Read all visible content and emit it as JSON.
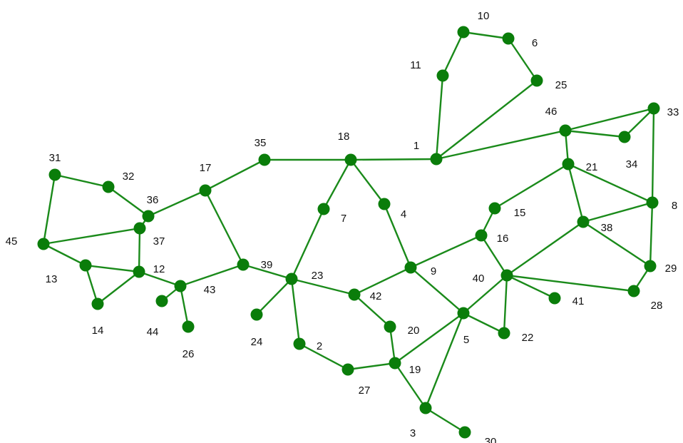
{
  "colors": {
    "node": "#0a7d0a",
    "edge": "#1a8a1a",
    "label": "#111111",
    "background": "#ffffff"
  },
  "nodes": [
    {
      "id": "1"
    },
    {
      "id": "2"
    },
    {
      "id": "3"
    },
    {
      "id": "4"
    },
    {
      "id": "5"
    },
    {
      "id": "6"
    },
    {
      "id": "7"
    },
    {
      "id": "8"
    },
    {
      "id": "9"
    },
    {
      "id": "10"
    },
    {
      "id": "11"
    },
    {
      "id": "12"
    },
    {
      "id": "13"
    },
    {
      "id": "14"
    },
    {
      "id": "15"
    },
    {
      "id": "16"
    },
    {
      "id": "17"
    },
    {
      "id": "18"
    },
    {
      "id": "19"
    },
    {
      "id": "20"
    },
    {
      "id": "21"
    },
    {
      "id": "22"
    },
    {
      "id": "23"
    },
    {
      "id": "24"
    },
    {
      "id": "25"
    },
    {
      "id": "26"
    },
    {
      "id": "27"
    },
    {
      "id": "28"
    },
    {
      "id": "29"
    },
    {
      "id": "30"
    },
    {
      "id": "31"
    },
    {
      "id": "32"
    },
    {
      "id": "33"
    },
    {
      "id": "34"
    },
    {
      "id": "35"
    },
    {
      "id": "36"
    },
    {
      "id": "37"
    },
    {
      "id": "38"
    },
    {
      "id": "39"
    },
    {
      "id": "40"
    },
    {
      "id": "41"
    },
    {
      "id": "42"
    },
    {
      "id": "43"
    },
    {
      "id": "44"
    },
    {
      "id": "45"
    },
    {
      "id": "46"
    }
  ],
  "edges": [
    [
      "10",
      "11"
    ],
    [
      "10",
      "6"
    ],
    [
      "6",
      "25"
    ],
    [
      "11",
      "1"
    ],
    [
      "25",
      "1"
    ],
    [
      "1",
      "18"
    ],
    [
      "1",
      "46"
    ],
    [
      "18",
      "35"
    ],
    [
      "18",
      "7"
    ],
    [
      "18",
      "4"
    ],
    [
      "35",
      "17"
    ],
    [
      "17",
      "36"
    ],
    [
      "17",
      "39"
    ],
    [
      "36",
      "32"
    ],
    [
      "32",
      "31"
    ],
    [
      "31",
      "45"
    ],
    [
      "45",
      "37"
    ],
    [
      "36",
      "37"
    ],
    [
      "37",
      "12"
    ],
    [
      "45",
      "13"
    ],
    [
      "13",
      "14"
    ],
    [
      "13",
      "12"
    ],
    [
      "14",
      "12"
    ],
    [
      "12",
      "43"
    ],
    [
      "43",
      "44"
    ],
    [
      "43",
      "26"
    ],
    [
      "43",
      "39"
    ],
    [
      "39",
      "23"
    ],
    [
      "23",
      "7"
    ],
    [
      "23",
      "24"
    ],
    [
      "23",
      "2"
    ],
    [
      "23",
      "42"
    ],
    [
      "42",
      "9"
    ],
    [
      "42",
      "20"
    ],
    [
      "4",
      "9"
    ],
    [
      "9",
      "16"
    ],
    [
      "9",
      "5"
    ],
    [
      "20",
      "19"
    ],
    [
      "2",
      "27"
    ],
    [
      "27",
      "19"
    ],
    [
      "19",
      "3"
    ],
    [
      "19",
      "5"
    ],
    [
      "3",
      "30"
    ],
    [
      "3",
      "5"
    ],
    [
      "5",
      "40"
    ],
    [
      "5",
      "22"
    ],
    [
      "40",
      "22"
    ],
    [
      "40",
      "41"
    ],
    [
      "40",
      "28"
    ],
    [
      "40",
      "38"
    ],
    [
      "40",
      "16"
    ],
    [
      "16",
      "15"
    ],
    [
      "15",
      "21"
    ],
    [
      "46",
      "21"
    ],
    [
      "46",
      "33"
    ],
    [
      "46",
      "34"
    ],
    [
      "34",
      "33"
    ],
    [
      "33",
      "8"
    ],
    [
      "21",
      "8"
    ],
    [
      "21",
      "38"
    ],
    [
      "38",
      "8"
    ],
    [
      "38",
      "29"
    ],
    [
      "8",
      "29"
    ],
    [
      "29",
      "28"
    ]
  ]
}
